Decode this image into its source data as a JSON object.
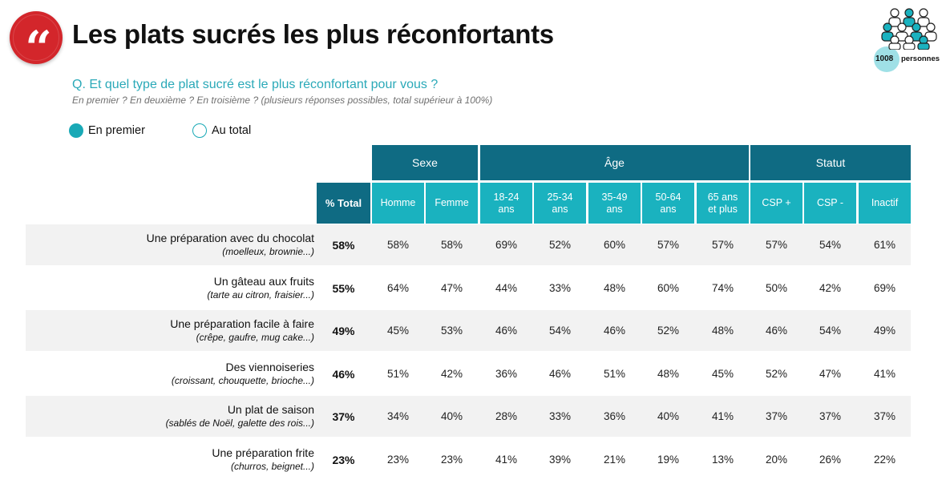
{
  "header": {
    "quote_glyph": "“",
    "title": "Les plats sucrés les plus réconfortants",
    "panel_count": "1008",
    "panel_label": "personnes",
    "panel_icon": "people-group-icon"
  },
  "question": {
    "text": "Q. Et quel type de plat sucré est le plus réconfortant pour vous ?",
    "note": "En premier ? En deuxième ? En troisième ? (plusieurs réponses possibles, total supérieur à 100%)"
  },
  "legend": {
    "first": "En premier",
    "total": "Au total"
  },
  "colors": {
    "accent_dark": "#0f6b83",
    "accent_light": "#1ab2bf",
    "question_teal": "#2aa9b8",
    "quote_red": "#d3262b",
    "band_grey": "#f2f2f2"
  },
  "table": {
    "groups": [
      "Sexe",
      "Âge",
      "Statut"
    ],
    "total_header": "% Total",
    "columns": [
      "Homme",
      "Femme",
      "18-24\nans",
      "25-34\nans",
      "35-49\nans",
      "50-64\nans",
      "65 ans\net plus",
      "CSP +",
      "CSP -",
      "Inactif"
    ],
    "rows": [
      {
        "label": "Une préparation avec du chocolat",
        "detail": "(moelleux, brownie...)",
        "total": "58%",
        "values": [
          "58%",
          "58%",
          "69%",
          "52%",
          "60%",
          "57%",
          "57%",
          "57%",
          "54%",
          "61%"
        ]
      },
      {
        "label": "Un gâteau aux fruits",
        "detail": "(tarte au citron, fraisier...)",
        "total": "55%",
        "values": [
          "64%",
          "47%",
          "44%",
          "33%",
          "48%",
          "60%",
          "74%",
          "50%",
          "42%",
          "69%"
        ]
      },
      {
        "label": "Une préparation facile à faire",
        "detail": "(crêpe, gaufre, mug cake...)",
        "total": "49%",
        "values": [
          "45%",
          "53%",
          "46%",
          "54%",
          "46%",
          "52%",
          "48%",
          "46%",
          "54%",
          "49%"
        ]
      },
      {
        "label": "Des viennoiseries",
        "detail": "(croissant, chouquette, brioche...)",
        "total": "46%",
        "values": [
          "51%",
          "42%",
          "36%",
          "46%",
          "51%",
          "48%",
          "45%",
          "52%",
          "47%",
          "41%"
        ]
      },
      {
        "label": "Un plat de saison",
        "detail": "(sablés de Noël, galette des rois...)",
        "total": "37%",
        "values": [
          "34%",
          "40%",
          "28%",
          "33%",
          "36%",
          "40%",
          "41%",
          "37%",
          "37%",
          "37%"
        ]
      },
      {
        "label": "Une préparation frite",
        "detail": "(churros, beignet...)",
        "total": "23%",
        "values": [
          "23%",
          "23%",
          "41%",
          "39%",
          "21%",
          "19%",
          "13%",
          "20%",
          "26%",
          "22%"
        ]
      }
    ]
  }
}
